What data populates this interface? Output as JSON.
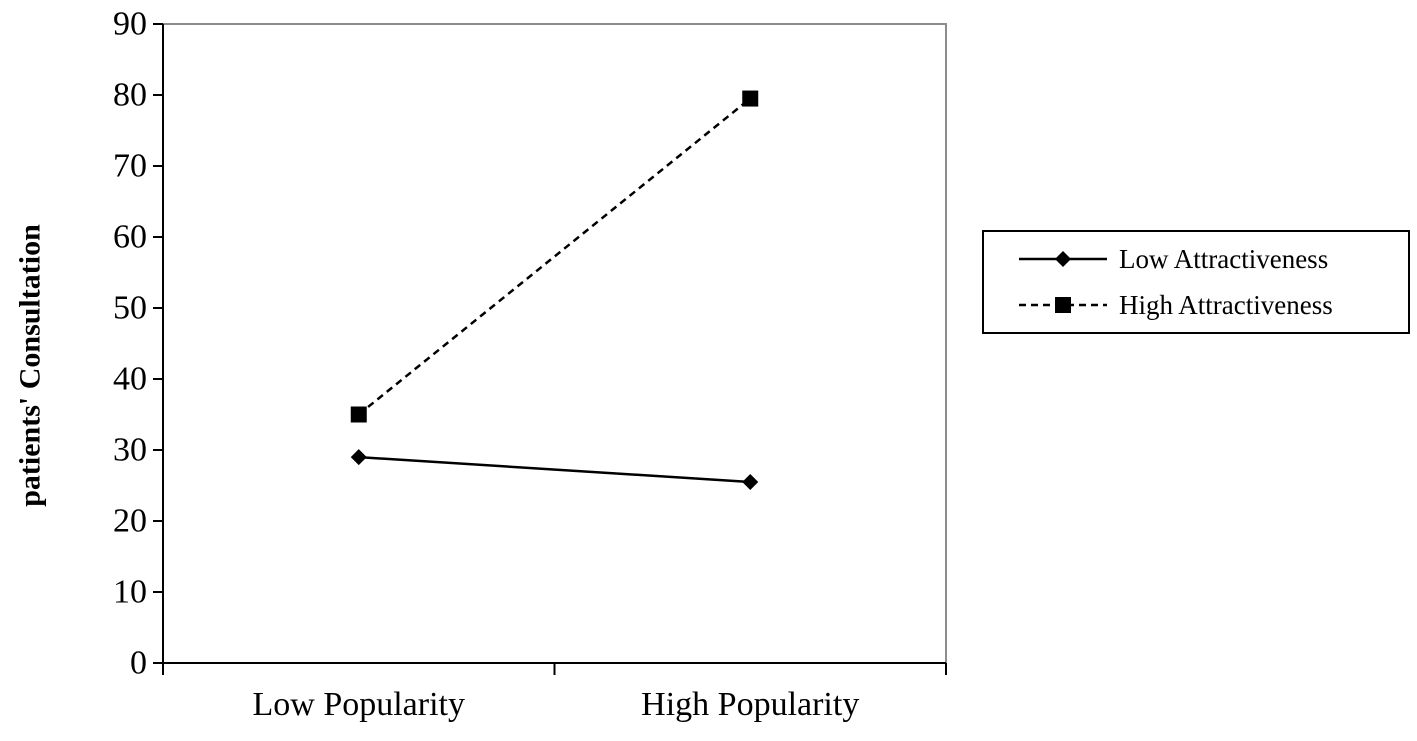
{
  "chart_data": {
    "type": "line",
    "title": "",
    "xlabel": "",
    "ylabel": "patients' Consultation",
    "categories": [
      "Low Popularity",
      "High Popularity"
    ],
    "ylim": [
      0,
      90
    ],
    "yticks": [
      0,
      10,
      20,
      30,
      40,
      50,
      60,
      70,
      80,
      90
    ],
    "grid": false,
    "legend_position": "right",
    "series": [
      {
        "name": "Low Attractiveness",
        "values": [
          29,
          25.5
        ],
        "marker": "diamond",
        "line_style": "solid",
        "color": "#000000"
      },
      {
        "name": "High Attractiveness",
        "values": [
          35,
          79.5
        ],
        "marker": "square",
        "line_style": "dashed",
        "color": "#000000"
      }
    ]
  }
}
